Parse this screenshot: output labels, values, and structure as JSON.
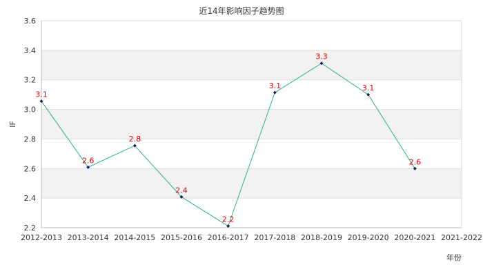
{
  "chart_data": {
    "type": "line",
    "title": "近14年影响因子趋势图",
    "xlabel": "年份",
    "ylabel": "IF",
    "categories": [
      "2012-2013",
      "2013-2014",
      "2014-2015",
      "2015-2016",
      "2016-2017",
      "2017-2018",
      "2018-2019",
      "2019-2020",
      "2020-2021",
      "2021-2022"
    ],
    "series": [
      {
        "values": [
          3.056,
          2.609,
          2.755,
          2.408,
          2.211,
          3.114,
          3.312,
          3.1,
          2.6,
          null
        ],
        "labels": [
          "3.1",
          "2.6",
          "2.8",
          "2.4",
          "2.2",
          "3.1",
          "3.3",
          "3.1",
          "2.6",
          ""
        ]
      }
    ],
    "y_ticks": [
      "2.2",
      "2.4",
      "2.6",
      "2.8",
      "3.0",
      "3.2",
      "3.4",
      "3.6"
    ],
    "ylim": [
      2.2,
      3.6
    ],
    "grid": true,
    "alternating_bands": true,
    "colors": {
      "line": "#2ab08a",
      "marker": "#1a1a5a",
      "label": "#e00000",
      "band": "#f2f2f2",
      "grid": "#dddddd",
      "axis": "#bbbbbb"
    }
  }
}
